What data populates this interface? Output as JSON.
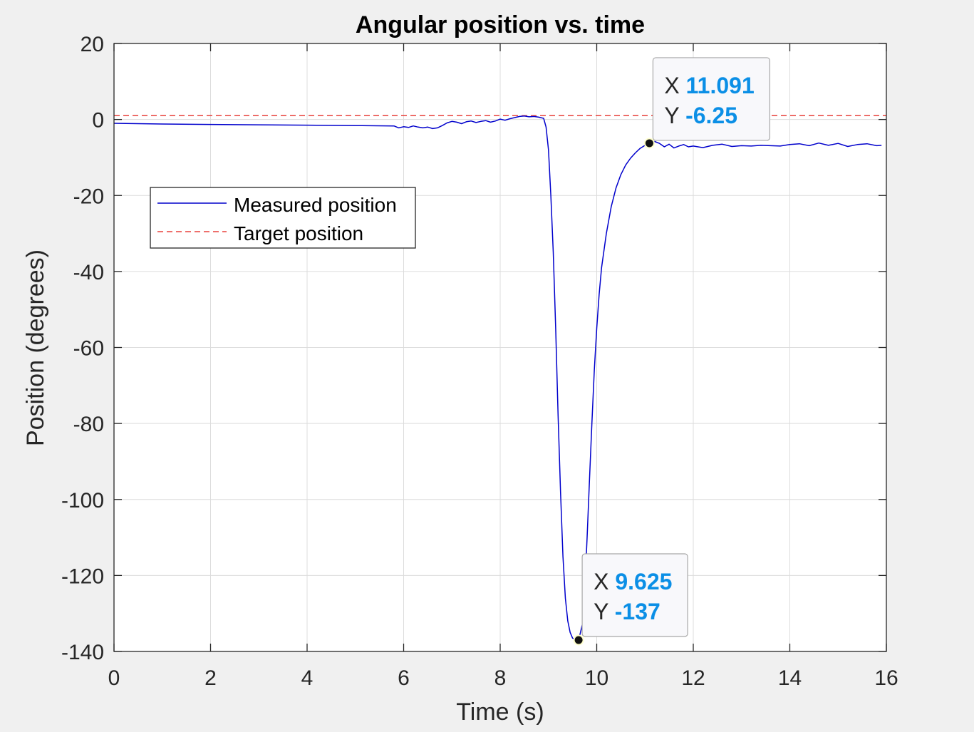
{
  "chart_data": {
    "type": "line",
    "title": "Angular position vs. time",
    "xlabel": "Time (s)",
    "ylabel": "Position (degrees)",
    "xlim": [
      0,
      16
    ],
    "ylim": [
      -140,
      20
    ],
    "xticks": [
      0,
      2,
      4,
      6,
      8,
      10,
      12,
      14,
      16
    ],
    "yticks": [
      20,
      0,
      -20,
      -40,
      -60,
      -80,
      -100,
      -120,
      -140
    ],
    "grid": true,
    "legend_position": "upper-left",
    "series": [
      {
        "name": "Measured position",
        "color": "#0000cc",
        "style": "solid",
        "x": [
          0,
          1,
          2,
          3,
          4,
          5,
          5.8,
          5.9,
          6.0,
          6.1,
          6.2,
          6.3,
          6.4,
          6.5,
          6.6,
          6.7,
          6.8,
          6.9,
          7.0,
          7.1,
          7.2,
          7.3,
          7.4,
          7.5,
          7.6,
          7.7,
          7.8,
          7.9,
          8.0,
          8.1,
          8.2,
          8.3,
          8.4,
          8.5,
          8.6,
          8.7,
          8.8,
          8.9,
          8.95,
          9.0,
          9.05,
          9.1,
          9.15,
          9.2,
          9.25,
          9.3,
          9.35,
          9.4,
          9.45,
          9.5,
          9.55,
          9.6,
          9.625,
          9.7,
          9.75,
          9.8,
          9.85,
          9.9,
          9.95,
          10.0,
          10.05,
          10.1,
          10.2,
          10.3,
          10.4,
          10.5,
          10.6,
          10.7,
          10.8,
          10.9,
          11.0,
          11.091,
          11.2,
          11.3,
          11.4,
          11.5,
          11.6,
          11.7,
          11.8,
          11.9,
          12.0,
          12.2,
          12.4,
          12.6,
          12.8,
          13.0,
          13.2,
          13.4,
          13.6,
          13.8,
          14.0,
          14.2,
          14.4,
          14.6,
          14.8,
          15.0,
          15.2,
          15.4,
          15.6,
          15.8,
          15.9
        ],
        "y": [
          -1,
          -1.2,
          -1.3,
          -1.4,
          -1.5,
          -1.6,
          -1.7,
          -2.2,
          -1.9,
          -2.1,
          -1.7,
          -2.0,
          -2.2,
          -2.0,
          -2.4,
          -2.2,
          -1.6,
          -0.9,
          -0.5,
          -0.7,
          -1.1,
          -0.6,
          -0.4,
          -0.8,
          -0.5,
          -0.3,
          -0.7,
          -0.4,
          0.1,
          -0.2,
          0.2,
          0.5,
          0.8,
          0.9,
          0.7,
          0.8,
          0.6,
          0.3,
          -2,
          -8,
          -20,
          -35,
          -55,
          -78,
          -98,
          -115,
          -126,
          -132,
          -135,
          -136.5,
          -136.8,
          -137,
          -137,
          -133,
          -124,
          -110,
          -95,
          -80,
          -66,
          -55,
          -46,
          -39,
          -30,
          -23,
          -18,
          -14.5,
          -12,
          -10.2,
          -8.8,
          -7.6,
          -6.8,
          -6.25,
          -5.8,
          -6.3,
          -7.2,
          -6.5,
          -7.5,
          -7.0,
          -6.6,
          -7.2,
          -7.0,
          -7.4,
          -6.8,
          -6.5,
          -7.1,
          -6.9,
          -7.0,
          -6.8,
          -6.9,
          -7.0,
          -6.6,
          -6.4,
          -6.9,
          -6.2,
          -6.8,
          -6.3,
          -7.1,
          -6.6,
          -6.4,
          -6.9,
          -6.8
        ]
      },
      {
        "name": "Target position",
        "color": "#e8413c",
        "style": "dashed",
        "x": [
          0,
          16
        ],
        "y": [
          1,
          1
        ]
      }
    ],
    "datatips": [
      {
        "x_label": "X",
        "y_label": "Y",
        "x_text": "11.091",
        "y_text": "-6.25",
        "x": 11.091,
        "y": -6.25
      },
      {
        "x_label": "X",
        "y_label": "Y",
        "x_text": "9.625",
        "y_text": "-137",
        "x": 9.625,
        "y": -137
      }
    ]
  }
}
